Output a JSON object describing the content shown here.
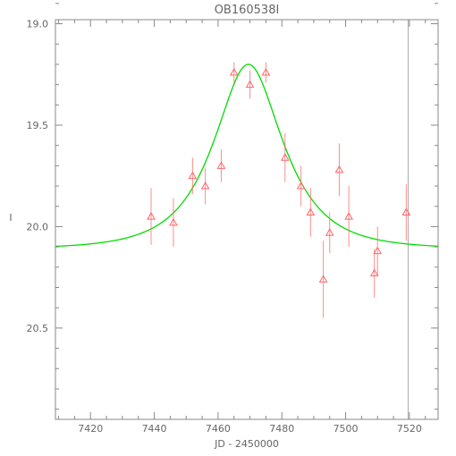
{
  "chart_data": {
    "type": "scatter",
    "title": "OB160538I",
    "xlabel": "JD - 2450000",
    "ylabel": "I",
    "xlim": [
      7409,
      7529
    ],
    "ylim": [
      20.95,
      18.98
    ],
    "y_inverted": true,
    "xticks": [
      7420,
      7440,
      7460,
      7480,
      7500,
      7520
    ],
    "yticks": [
      19.0,
      19.5,
      20.0,
      20.5
    ],
    "colors": {
      "axis": "#888888",
      "points": "#ff6666",
      "model": "#00dd00",
      "marker_line": "#aaaaaa"
    },
    "series": [
      {
        "kind": "points_with_errorbars",
        "marker": "triangle",
        "points": [
          {
            "x": 7439,
            "y": 19.95,
            "err": 0.14
          },
          {
            "x": 7446,
            "y": 19.98,
            "err": 0.12
          },
          {
            "x": 7452,
            "y": 19.75,
            "err": 0.09
          },
          {
            "x": 7456,
            "y": 19.8,
            "err": 0.09
          },
          {
            "x": 7461,
            "y": 19.7,
            "err": 0.08
          },
          {
            "x": 7465,
            "y": 19.24,
            "err": 0.05
          },
          {
            "x": 7470,
            "y": 19.3,
            "err": 0.07
          },
          {
            "x": 7475,
            "y": 19.24,
            "err": 0.05
          },
          {
            "x": 7481,
            "y": 19.66,
            "err": 0.12
          },
          {
            "x": 7486,
            "y": 19.8,
            "err": 0.1
          },
          {
            "x": 7489,
            "y": 19.93,
            "err": 0.12
          },
          {
            "x": 7493,
            "y": 20.26,
            "err": 0.19
          },
          {
            "x": 7495,
            "y": 20.03,
            "err": 0.1
          },
          {
            "x": 7498,
            "y": 19.72,
            "err": 0.13
          },
          {
            "x": 7501,
            "y": 19.95,
            "err": 0.15
          },
          {
            "x": 7509,
            "y": 20.23,
            "err": 0.12
          },
          {
            "x": 7510,
            "y": 20.12,
            "err": 0.12
          },
          {
            "x": 7519,
            "y": 19.93,
            "err": 0.14
          }
        ]
      },
      {
        "kind": "model_curve",
        "model": "microlensing",
        "t0": 7469.5,
        "tE": 17,
        "u0": 0.6,
        "baseline": 20.11,
        "peak_mag": 19.2
      }
    ],
    "reference_line_x": 7519.6,
    "grid": false,
    "legend": "none"
  }
}
